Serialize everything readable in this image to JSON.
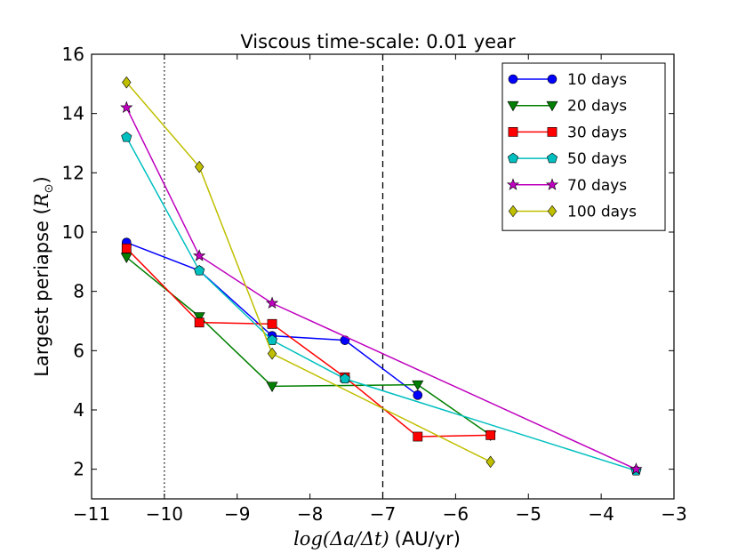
{
  "chart_data": {
    "type": "line",
    "title": "Viscous time-scale: 0.01 year",
    "xlabel_math": "log(Δa/Δt)",
    "xlabel_unit": "(AU/yr)",
    "ylabel_text": "Largest periapse (",
    "ylabel_math": "R",
    "ylabel_sub": "⊙",
    "ylabel_close": ")",
    "xlim": [
      -11,
      -3
    ],
    "ylim": [
      1,
      16
    ],
    "xticks": [
      -11,
      -10,
      -9,
      -8,
      -7,
      -6,
      -5,
      -4,
      -3
    ],
    "xtick_labels": [
      "−11",
      "−10",
      "−9",
      "−8",
      "−7",
      "−6",
      "−5",
      "−4",
      "−3"
    ],
    "yticks": [
      2,
      4,
      6,
      8,
      10,
      12,
      14,
      16
    ],
    "ytick_labels": [
      "2",
      "4",
      "6",
      "8",
      "10",
      "12",
      "14",
      "16"
    ],
    "vlines": [
      {
        "x": -10.0,
        "style": "dotted"
      },
      {
        "x": -7.0,
        "style": "dashed"
      }
    ],
    "legend_position": "top-right",
    "series": [
      {
        "name": "10 days",
        "color": "#0000ff",
        "marker": "circle",
        "x": [
          -10.52,
          -9.52,
          -8.52,
          -7.52,
          -6.52
        ],
        "y": [
          9.65,
          8.7,
          6.5,
          6.35,
          4.5
        ]
      },
      {
        "name": "20 days",
        "color": "#007f00",
        "marker": "triangle-down",
        "x": [
          -10.52,
          -9.52,
          -8.52,
          -6.52,
          -5.52
        ],
        "y": [
          9.15,
          7.15,
          4.8,
          4.85,
          3.15
        ]
      },
      {
        "name": "30 days",
        "color": "#ff0000",
        "marker": "square",
        "x": [
          -10.52,
          -9.52,
          -8.52,
          -7.52,
          -6.52,
          -5.52
        ],
        "y": [
          9.45,
          6.95,
          6.9,
          5.1,
          3.1,
          3.15
        ]
      },
      {
        "name": "50 days",
        "color": "#00bfbf",
        "marker": "pentagon",
        "x": [
          -10.52,
          -9.52,
          -8.52,
          -7.52,
          -3.52
        ],
        "y": [
          13.2,
          8.7,
          6.35,
          5.05,
          1.95
        ]
      },
      {
        "name": "70 days",
        "color": "#bf00bf",
        "marker": "star",
        "x": [
          -10.52,
          -9.52,
          -8.52,
          -3.52
        ],
        "y": [
          14.2,
          9.2,
          7.6,
          2.0
        ]
      },
      {
        "name": "100 days",
        "color": "#bfbf00",
        "marker": "diamond",
        "x": [
          -10.52,
          -9.52,
          -8.52,
          -5.52
        ],
        "y": [
          15.05,
          12.2,
          5.9,
          2.25
        ]
      }
    ]
  }
}
